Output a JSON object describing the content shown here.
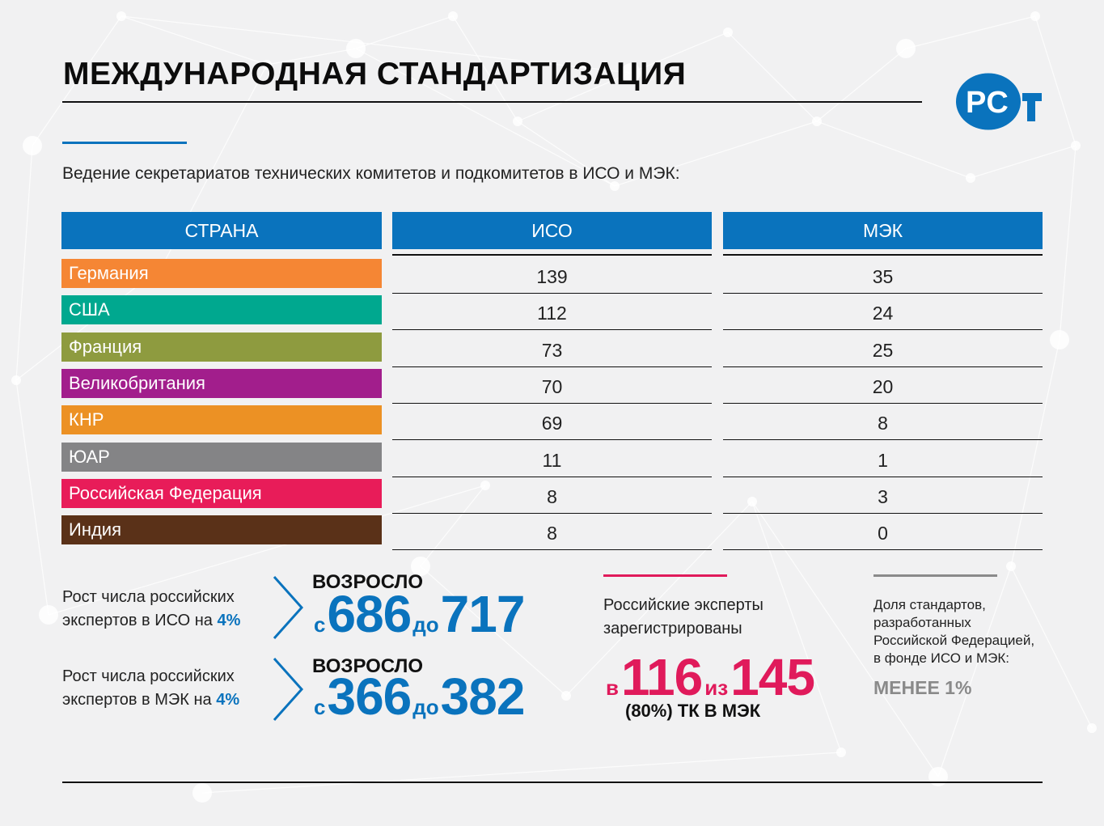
{
  "title": "МЕЖДУНАРОДНАЯ СТАНДАРТИЗАЦИЯ",
  "logo": {
    "icon": "rst-logo",
    "color": "#0a73bd"
  },
  "subtitle": "Ведение секретариатов технических комитетов и подкомитетов в ИСО и МЭК:",
  "table": {
    "headers": [
      "СТРАНА",
      "ИСО",
      "МЭК"
    ],
    "header_color": "#0a73bd",
    "rows": [
      {
        "country": "Германия",
        "iso": "139",
        "iec": "35",
        "color": "#f58634"
      },
      {
        "country": "США",
        "iso": "112",
        "iec": "24",
        "color": "#00a88f"
      },
      {
        "country": "Франция",
        "iso": "73",
        "iec": "25",
        "color": "#8e9b3f"
      },
      {
        "country": "Великобритания",
        "iso": "70",
        "iec": "20",
        "color": "#a21e8c"
      },
      {
        "country": "КНР",
        "iso": "69",
        "iec": "8",
        "color": "#ec9124"
      },
      {
        "country": "ЮАР",
        "iso": "11",
        "iec": "1",
        "color": "#848486"
      },
      {
        "country": "Российская Федерация",
        "iso": "8",
        "iec": "3",
        "color": "#e81c59"
      },
      {
        "country": "Индия",
        "iso": "8",
        "iec": "0",
        "color": "#5a3118"
      }
    ]
  },
  "growth": [
    {
      "line1": "Рост числа российских",
      "line2": "экспертов в ИСО на ",
      "pct": "4%",
      "rose": "ВОЗРОСЛО",
      "from_word": "с",
      "from": "686",
      "to_word": "до",
      "to": "717"
    },
    {
      "line1": "Рост числа российских",
      "line2": "экспертов в МЭК на ",
      "pct": "4%",
      "rose": "ВОЗРОСЛО",
      "from_word": "с",
      "from": "366",
      "to_word": "до",
      "to": "382"
    }
  ],
  "experts": {
    "line1": "Российские эксперты",
    "line2": "зарегистрированы",
    "in_word": "в",
    "count": "116",
    "of_word": "из",
    "total": "145",
    "note": "(80%) ТК В МЭК"
  },
  "share": {
    "lines": [
      "Доля стандартов,",
      "разработанных",
      "Российской Федерацией,",
      "в фонде ИСО и МЭК:"
    ],
    "value": "МЕНЕЕ 1%"
  },
  "colors": {
    "accent": "#0a73bd",
    "pink": "#e01a5b",
    "gray": "#8a8a8a"
  }
}
